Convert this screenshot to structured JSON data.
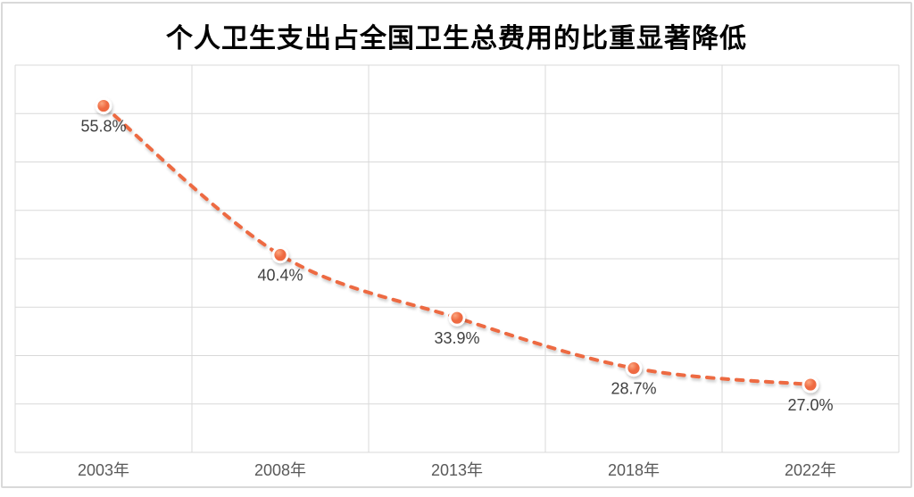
{
  "chart_data": {
    "type": "line",
    "title": "个人卫生支出占全国卫生总费用的比重显著降低",
    "categories": [
      "2003年",
      "2008年",
      "2013年",
      "2018年",
      "2022年"
    ],
    "values": [
      55.8,
      40.4,
      33.9,
      28.7,
      27.0
    ],
    "data_labels": [
      "55.8%",
      "40.4%",
      "33.9%",
      "28.7%",
      "27.0%"
    ],
    "xlabel": "",
    "ylabel": "",
    "ylim": [
      20,
      60
    ],
    "y_gridline_step": 5,
    "grid": true,
    "legend": "none",
    "line_style": "dashed",
    "smooth": true,
    "style": {
      "line_color": "#ED6A43",
      "marker_fill": "#EF6B42",
      "marker_highlight": "#FBA57E",
      "marker_ring": "#FFFFFF",
      "gridline_color": "#D9D9D9",
      "axis_label_color": "#595959",
      "data_label_color": "#404040",
      "title_color": "#000000",
      "card_border_color": "#D9D9D9",
      "background": "#FFFFFF"
    }
  }
}
